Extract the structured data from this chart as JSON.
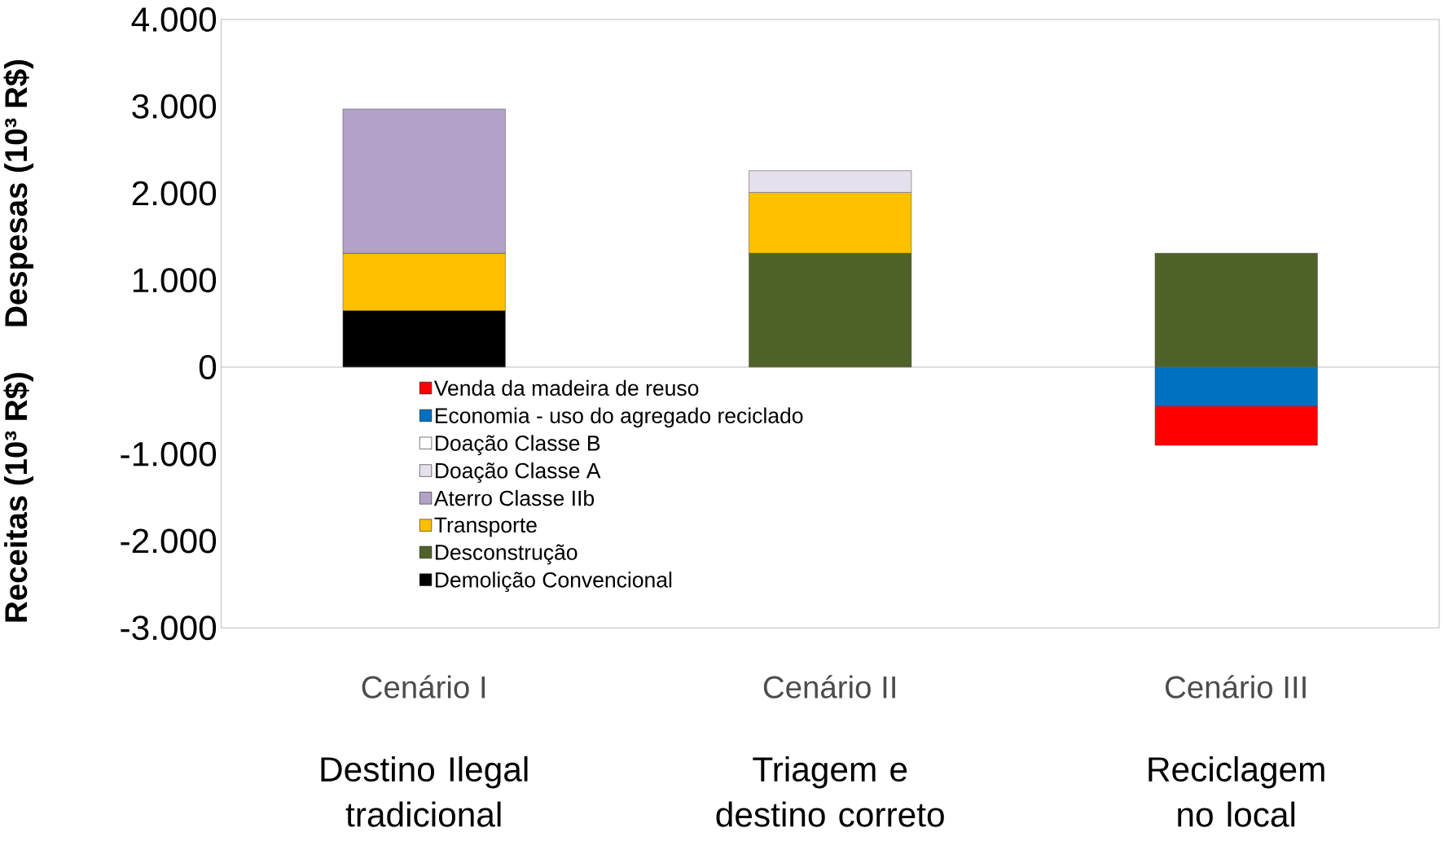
{
  "chart_data": {
    "type": "bar",
    "stacked": true,
    "categories": [
      "Cenário I",
      "Cenário II",
      "Cenário III"
    ],
    "series": [
      {
        "name": "Demolição Convencional",
        "color": "#000000",
        "values": [
          650,
          0,
          0
        ]
      },
      {
        "name": "Desconstrução",
        "color": "#4f6228",
        "values": [
          0,
          1310,
          1310
        ]
      },
      {
        "name": "Transporte",
        "color": "#ffc000",
        "values": [
          660,
          700,
          0
        ]
      },
      {
        "name": "Aterro Classe IIb",
        "color": "#b3a2c7",
        "values": [
          1660,
          0,
          0
        ]
      },
      {
        "name": "Doação Classe A",
        "color": "#e6e0ec",
        "values": [
          0,
          250,
          0
        ]
      },
      {
        "name": "Doação Classe B",
        "color": "#ffffff",
        "values": [
          0,
          0,
          0
        ]
      },
      {
        "name": "Economia - uso do agregado reciclado",
        "color": "#0070c0",
        "values": [
          0,
          0,
          -450
        ]
      },
      {
        "name": "Venda da madeira de reuso",
        "color": "#ff0000",
        "values": [
          0,
          0,
          -450
        ]
      }
    ],
    "ylabel": "Despesas (10³ R$)",
    "ylim": [
      -3000,
      4000
    ],
    "yticks": [
      {
        "value": -3000,
        "label": "-3.000"
      },
      {
        "value": -2000,
        "label": "-2.000"
      },
      {
        "value": -1000,
        "label": "-1.000"
      },
      0,
      {
        "value": 1000,
        "label": "1.000"
      },
      {
        "value": 2000,
        "label": "2.000"
      },
      {
        "value": 3000,
        "label": "3.000"
      },
      {
        "value": 4000,
        "label": "4.000"
      }
    ],
    "legend": "bottom left",
    "annotations": [
      "Receitas (10³ R$)",
      "Destino Ilegal tradicional",
      "Triagem e destino correto",
      "Reciclagem no local"
    ]
  }
}
